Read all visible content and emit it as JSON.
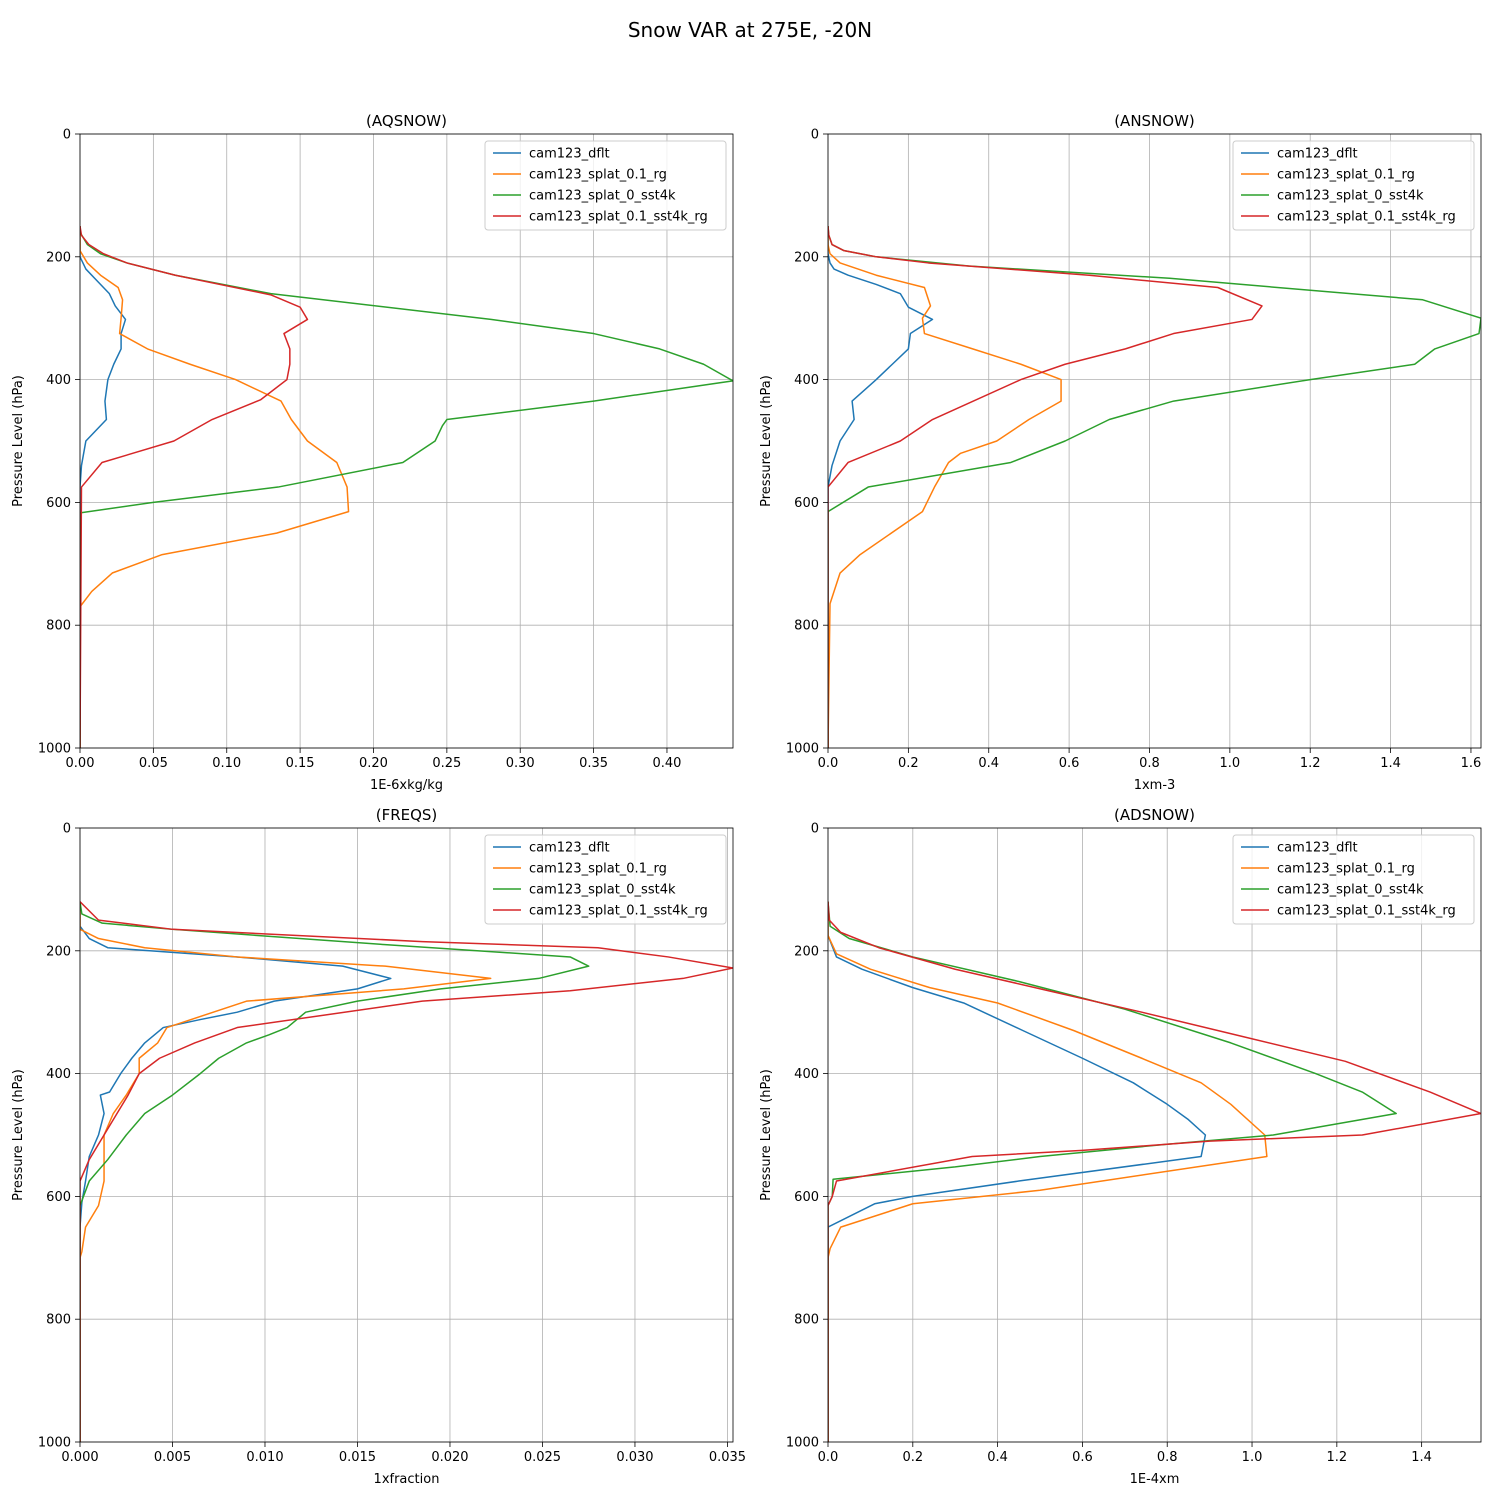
{
  "figure": {
    "title": "Snow VAR at 275E, -20N"
  },
  "colors": {
    "cam123_dflt": "#1f77b4",
    "cam123_splat_0.1_rg": "#ff7f0e",
    "cam123_splat_0_sst4k": "#2ca02c",
    "cam123_splat_0.1_sst4k_rg": "#d62728"
  },
  "chart_data": [
    {
      "type": "line",
      "title": "(AQSNOW)",
      "xlabel": "1E-6xkg/kg",
      "ylabel": "Pressure Level (hPa)",
      "xlim": [
        0,
        0.445
      ],
      "ylim": [
        1000,
        0
      ],
      "xticks": [
        0,
        0.05,
        0.1,
        0.15,
        0.2,
        0.25,
        0.3,
        0.35,
        0.4
      ],
      "xtick_labels": [
        "0.00",
        "0.05",
        "0.10",
        "0.15",
        "0.20",
        "0.25",
        "0.30",
        "0.35",
        "0.40"
      ],
      "yticks": [
        0,
        200,
        400,
        600,
        800,
        1000
      ],
      "ytick_labels": [
        "0",
        "200",
        "400",
        "600",
        "800",
        "1000"
      ],
      "grid": true,
      "legend": "top-right",
      "series": [
        {
          "name": "cam123_dflt",
          "x": [
            0,
            0,
            0.004,
            0.012,
            0.02,
            0.024,
            0.031,
            0.028,
            0.028,
            0.023,
            0.019,
            0.017,
            0.018,
            0.004,
            0.001,
            0,
            0
          ],
          "y": [
            150,
            200,
            220,
            240,
            260,
            280,
            302,
            325,
            350,
            375,
            400,
            435,
            465,
            500,
            540,
            575,
            1000
          ]
        },
        {
          "name": "cam123_splat_0.1_rg",
          "x": [
            0,
            0,
            0.005,
            0.014,
            0.026,
            0.029,
            0.028,
            0.027,
            0.046,
            0.075,
            0.106,
            0.137,
            0.144,
            0.155,
            0.175,
            0.182,
            0.183,
            0.134,
            0.056,
            0.022,
            0.008,
            0,
            0
          ],
          "y": [
            150,
            190,
            210,
            230,
            250,
            270,
            300,
            325,
            350,
            375,
            400,
            435,
            465,
            500,
            535,
            575,
            615,
            650,
            685,
            715,
            745,
            770,
            1000
          ]
        },
        {
          "name": "cam123_splat_0_sst4k",
          "x": [
            0,
            0,
            0.005,
            0.014,
            0.032,
            0.065,
            0.13,
            0.28,
            0.35,
            0.395,
            0.425,
            0.445,
            0.35,
            0.25,
            0.247,
            0.242,
            0.22,
            0.135,
            0.05,
            0,
            0
          ],
          "y": [
            150,
            160,
            180,
            195,
            210,
            230,
            260,
            302,
            325,
            350,
            375,
            402,
            435,
            465,
            475,
            500,
            535,
            575,
            600,
            617,
            1000
          ]
        },
        {
          "name": "cam123_splat_0.1_sst4k_rg",
          "x": [
            0,
            0.001,
            0.006,
            0.016,
            0.032,
            0.065,
            0.13,
            0.15,
            0.155,
            0.139,
            0.143,
            0.143,
            0.141,
            0.123,
            0.09,
            0.064,
            0.015,
            0.001,
            0
          ],
          "y": [
            150,
            165,
            180,
            195,
            210,
            230,
            262,
            282,
            302,
            325,
            350,
            375,
            400,
            433,
            465,
            500,
            535,
            575,
            1000
          ]
        }
      ]
    },
    {
      "type": "line",
      "title": "(ANSNOW)",
      "xlabel": "1xm-3",
      "ylabel": "Pressure Level (hPa)",
      "xlim": [
        0,
        1.625
      ],
      "ylim": [
        1000,
        0
      ],
      "xticks": [
        0,
        0.2,
        0.4,
        0.6,
        0.8,
        1.0,
        1.2,
        1.4,
        1.6
      ],
      "xtick_labels": [
        "0.0",
        "0.2",
        "0.4",
        "0.6",
        "0.8",
        "1.0",
        "1.2",
        "1.4",
        "1.6"
      ],
      "yticks": [
        0,
        200,
        400,
        600,
        800,
        1000
      ],
      "ytick_labels": [
        "0",
        "200",
        "400",
        "600",
        "800",
        "1000"
      ],
      "grid": true,
      "legend": "top-right",
      "series": [
        {
          "name": "cam123_dflt",
          "x": [
            0,
            0,
            0.005,
            0.015,
            0.05,
            0.12,
            0.18,
            0.2,
            0.26,
            0.205,
            0.2,
            0.16,
            0.12,
            0.06,
            0.065,
            0.03,
            0.01,
            0,
            0
          ],
          "y": [
            150,
            195,
            210,
            220,
            230,
            245,
            260,
            282,
            302,
            325,
            350,
            375,
            400,
            435,
            465,
            500,
            540,
            575,
            1000
          ]
        },
        {
          "name": "cam123_splat_0.1_rg",
          "x": [
            0,
            0,
            0.005,
            0.03,
            0.12,
            0.24,
            0.255,
            0.235,
            0.24,
            0.36,
            0.48,
            0.58,
            0.58,
            0.5,
            0.42,
            0.33,
            0.3,
            0.265,
            0.235,
            0.08,
            0.03,
            0.005,
            0
          ],
          "y": [
            150,
            180,
            195,
            210,
            230,
            250,
            280,
            300,
            325,
            350,
            375,
            400,
            435,
            465,
            500,
            520,
            535,
            575,
            615,
            685,
            715,
            765,
            1000
          ]
        },
        {
          "name": "cam123_splat_0_sst4k",
          "x": [
            0,
            0.002,
            0.01,
            0.04,
            0.12,
            0.35,
            0.85,
            1.48,
            1.625,
            1.62,
            1.51,
            1.46,
            1.2,
            0.86,
            0.7,
            0.59,
            0.455,
            0.1,
            0,
            0
          ],
          "y": [
            150,
            165,
            180,
            190,
            200,
            215,
            235,
            270,
            300,
            325,
            350,
            375,
            400,
            435,
            465,
            500,
            535,
            575,
            615,
            1000
          ]
        },
        {
          "name": "cam123_splat_0.1_sst4k_rg",
          "x": [
            0,
            0.002,
            0.01,
            0.04,
            0.12,
            0.25,
            0.45,
            0.65,
            0.97,
            1.08,
            1.055,
            0.86,
            0.74,
            0.59,
            0.48,
            0.26,
            0.18,
            0.05,
            0,
            0
          ],
          "y": [
            150,
            165,
            180,
            190,
            200,
            210,
            220,
            230,
            250,
            280,
            302,
            325,
            350,
            375,
            400,
            465,
            500,
            535,
            575,
            1000
          ]
        }
      ]
    },
    {
      "type": "line",
      "title": "(FREQS)",
      "xlabel": "1xfraction",
      "ylabel": "Pressure Level (hPa)",
      "xlim": [
        0,
        0.0353
      ],
      "ylim": [
        1000,
        0
      ],
      "xticks": [
        0,
        0.005,
        0.01,
        0.015,
        0.02,
        0.025,
        0.03,
        0.035
      ],
      "xtick_labels": [
        "0.000",
        "0.005",
        "0.010",
        "0.015",
        "0.020",
        "0.025",
        "0.030",
        "0.035"
      ],
      "yticks": [
        0,
        200,
        400,
        600,
        800,
        1000
      ],
      "ytick_labels": [
        "0",
        "200",
        "400",
        "600",
        "800",
        "1000"
      ],
      "grid": true,
      "legend": "top-right",
      "series": [
        {
          "name": "cam123_dflt",
          "x": [
            0,
            0,
            0.0005,
            0.0015,
            0.0085,
            0.0142,
            0.0168,
            0.015,
            0.0105,
            0.0085,
            0.0065,
            0.0045,
            0.0035,
            0.0028,
            0.0022,
            0.0016,
            0.0011,
            0.0013,
            0.001,
            0.0005,
            0.0003,
            0.0001,
            0,
            0
          ],
          "y": [
            120,
            160,
            180,
            195,
            210,
            225,
            245,
            262,
            282,
            300,
            312,
            325,
            350,
            375,
            400,
            430,
            435,
            465,
            500,
            535,
            575,
            610,
            650,
            1000
          ]
        },
        {
          "name": "cam123_splat_0.1_rg",
          "x": [
            0,
            0,
            0.001,
            0.0035,
            0.0085,
            0.0165,
            0.0222,
            0.0175,
            0.009,
            0.0047,
            0.0042,
            0.0032,
            0.0032,
            0.0025,
            0.0018,
            0.0013,
            0.0013,
            0.001,
            0.0003,
            0.0001,
            0,
            0
          ],
          "y": [
            120,
            165,
            180,
            195,
            210,
            225,
            245,
            262,
            282,
            325,
            350,
            375,
            400,
            435,
            465,
            500,
            575,
            615,
            650,
            690,
            700,
            1000
          ]
        },
        {
          "name": "cam123_splat_0_sst4k",
          "x": [
            0,
            0.0001,
            0.0012,
            0.005,
            0.0165,
            0.0265,
            0.0275,
            0.0248,
            0.0195,
            0.015,
            0.0122,
            0.0112,
            0.0102,
            0.009,
            0.0075,
            0.0065,
            0.005,
            0.0035,
            0.0025,
            0.0015,
            0.0005,
            0,
            0
          ],
          "y": [
            120,
            140,
            155,
            165,
            190,
            210,
            225,
            245,
            262,
            282,
            300,
            325,
            337,
            350,
            375,
            400,
            435,
            465,
            500,
            540,
            575,
            615,
            1000
          ]
        },
        {
          "name": "cam123_splat_0.1_sst4k_rg",
          "x": [
            0,
            0.001,
            0.005,
            0.0185,
            0.028,
            0.0318,
            0.0353,
            0.0326,
            0.0265,
            0.0185,
            0.0085,
            0.0062,
            0.0043,
            0.0032,
            0.0026,
            0.002,
            0.0013,
            0.0005,
            0,
            0
          ],
          "y": [
            120,
            150,
            165,
            185,
            195,
            210,
            228,
            245,
            265,
            282,
            325,
            350,
            375,
            400,
            435,
            465,
            500,
            540,
            575,
            1000
          ]
        }
      ]
    },
    {
      "type": "line",
      "title": "(ADSNOW)",
      "xlabel": "1E-4xm",
      "ylabel": "Pressure Level (hPa)",
      "xlim": [
        0,
        1.54
      ],
      "ylim": [
        1000,
        0
      ],
      "xticks": [
        0,
        0.2,
        0.4,
        0.6,
        0.8,
        1.0,
        1.2,
        1.4
      ],
      "xtick_labels": [
        "0.0",
        "0.2",
        "0.4",
        "0.6",
        "0.8",
        "1.0",
        "1.2",
        "1.4"
      ],
      "yticks": [
        0,
        200,
        400,
        600,
        800,
        1000
      ],
      "ytick_labels": [
        "0",
        "200",
        "400",
        "600",
        "800",
        "1000"
      ],
      "grid": true,
      "legend": "top-right",
      "series": [
        {
          "name": "cam123_dflt",
          "x": [
            0,
            0,
            0.02,
            0.08,
            0.2,
            0.32,
            0.46,
            0.6,
            0.72,
            0.8,
            0.85,
            0.89,
            0.88,
            0.45,
            0.2,
            0.11,
            0,
            0
          ],
          "y": [
            120,
            175,
            210,
            230,
            260,
            285,
            330,
            375,
            415,
            450,
            475,
            500,
            535,
            575,
            600,
            612,
            650,
            1000
          ]
        },
        {
          "name": "cam123_splat_0.1_rg",
          "x": [
            0,
            0,
            0.02,
            0.1,
            0.24,
            0.4,
            0.58,
            0.74,
            0.88,
            0.95,
            1.03,
            1.035,
            0.5,
            0.2,
            0.03,
            0.005,
            0,
            0
          ],
          "y": [
            120,
            175,
            205,
            230,
            260,
            285,
            330,
            375,
            415,
            450,
            500,
            535,
            590,
            612,
            650,
            685,
            700,
            1000
          ]
        },
        {
          "name": "cam123_splat_0_sst4k",
          "x": [
            0,
            0.005,
            0.05,
            0.2,
            0.45,
            0.7,
            0.95,
            1.15,
            1.26,
            1.34,
            1.05,
            0.8,
            0.5,
            0.3,
            0.012,
            0.01,
            0,
            0
          ],
          "y": [
            120,
            160,
            180,
            210,
            250,
            295,
            350,
            400,
            430,
            465,
            500,
            515,
            535,
            552,
            572,
            600,
            615,
            1000
          ]
        },
        {
          "name": "cam123_splat_0.1_sst4k_rg",
          "x": [
            0,
            0.003,
            0.03,
            0.12,
            0.3,
            0.52,
            0.74,
            0.98,
            1.22,
            1.42,
            1.54,
            1.26,
            0.9,
            0.6,
            0.34,
            0.02,
            0.01,
            0,
            0
          ],
          "y": [
            120,
            150,
            170,
            195,
            230,
            265,
            300,
            340,
            380,
            430,
            465,
            500,
            510,
            525,
            535,
            575,
            600,
            615,
            1000
          ]
        }
      ]
    }
  ]
}
